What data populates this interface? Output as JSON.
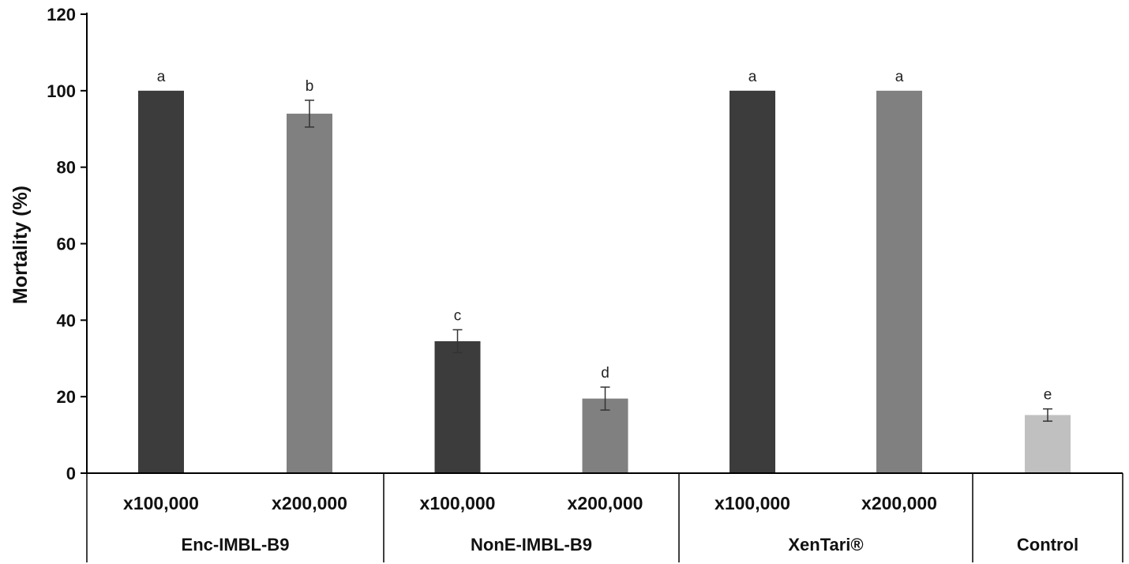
{
  "chart_data": {
    "type": "bar",
    "ylabel": "Mortality (%)",
    "xlabel": "",
    "title": "",
    "ylim": [
      0,
      120
    ],
    "yticks": [
      0,
      20,
      40,
      60,
      80,
      100,
      120
    ],
    "grid": false,
    "legend": "none",
    "groups": [
      {
        "label": "Enc-IMBL-B9",
        "bars": [
          {
            "category": "x100,000",
            "value": 100,
            "error": 0,
            "letter": "a",
            "color": "#3c3c3c"
          },
          {
            "category": "x200,000",
            "value": 94,
            "error": 3.5,
            "letter": "b",
            "color": "#808080"
          }
        ]
      },
      {
        "label": "NonE-IMBL-B9",
        "bars": [
          {
            "category": "x100,000",
            "value": 34.5,
            "error": 3,
            "letter": "c",
            "color": "#3c3c3c"
          },
          {
            "category": "x200,000",
            "value": 19.5,
            "error": 3,
            "letter": "d",
            "color": "#808080"
          }
        ]
      },
      {
        "label": "XenTari®",
        "bars": [
          {
            "category": "x100,000",
            "value": 100,
            "error": 0,
            "letter": "a",
            "color": "#3c3c3c"
          },
          {
            "category": "x200,000",
            "value": 100,
            "error": 0,
            "letter": "a",
            "color": "#808080"
          }
        ]
      },
      {
        "label": "Control",
        "bars": [
          {
            "category": "",
            "value": 15.2,
            "error": 1.6,
            "letter": "e",
            "color": "#c0c0c0"
          }
        ]
      }
    ]
  }
}
